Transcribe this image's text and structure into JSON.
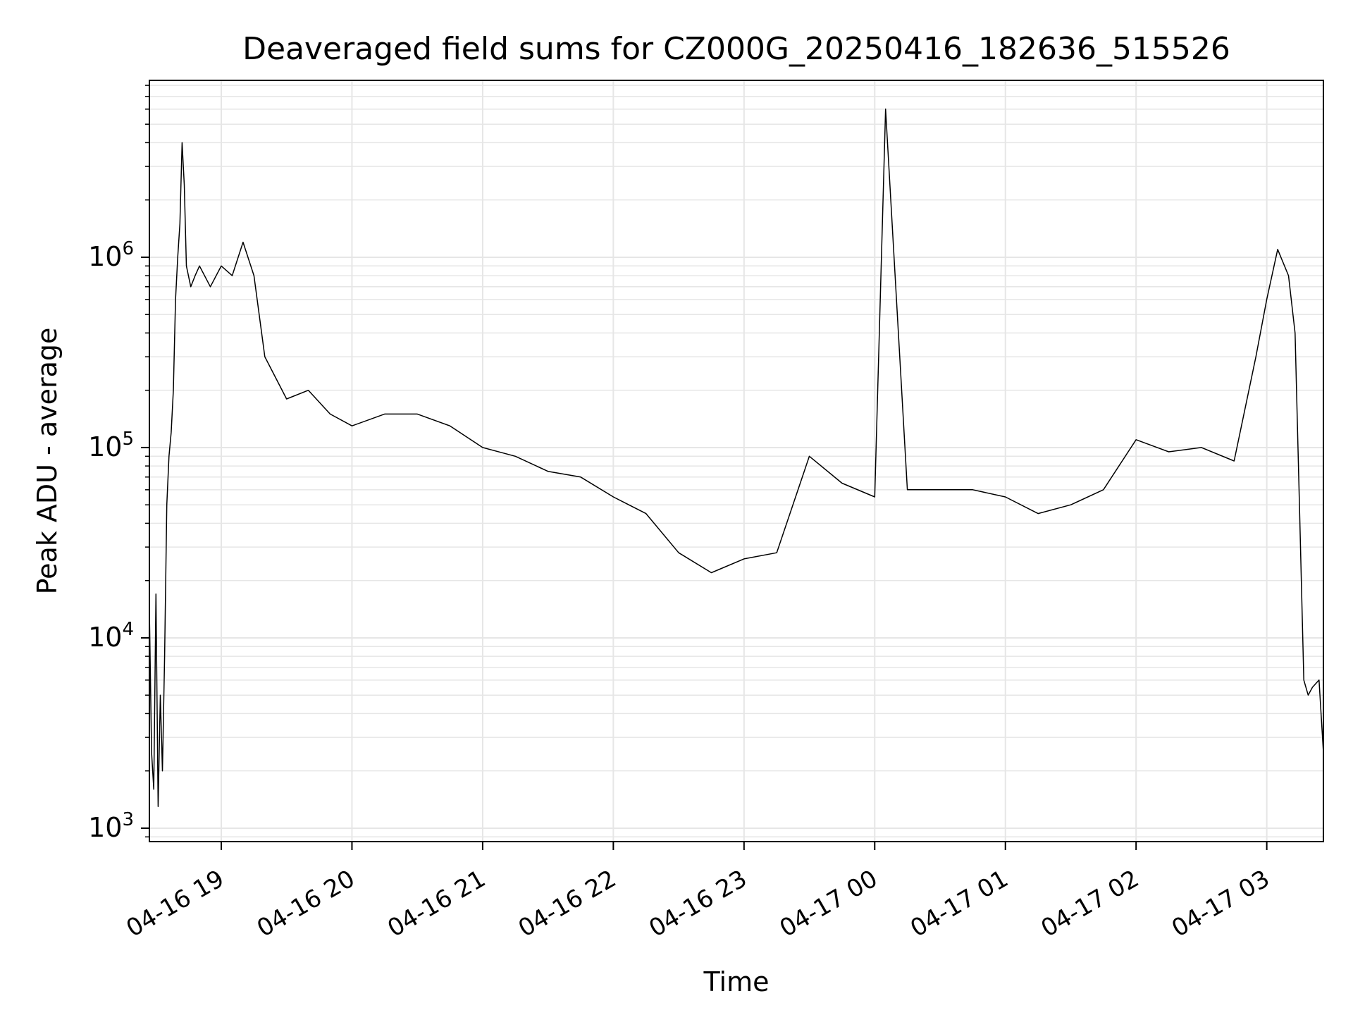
{
  "chart_data": {
    "type": "line",
    "title": "Deaveraged field sums for CZ000G_20250416_182636_515526",
    "xlabel": "Time",
    "ylabel": "Peak ADU - average",
    "xscale": "time",
    "yscale": "log",
    "xlim": [
      "2025-04-16 18:27",
      "2025-04-17 03:26"
    ],
    "ylim": [
      850,
      8500000
    ],
    "x_ticks": [
      {
        "value": "2025-04-16 19:00",
        "label": "04-16 19"
      },
      {
        "value": "2025-04-16 20:00",
        "label": "04-16 20"
      },
      {
        "value": "2025-04-16 21:00",
        "label": "04-16 21"
      },
      {
        "value": "2025-04-16 22:00",
        "label": "04-16 22"
      },
      {
        "value": "2025-04-16 23:00",
        "label": "04-16 23"
      },
      {
        "value": "2025-04-17 00:00",
        "label": "04-17 00"
      },
      {
        "value": "2025-04-17 01:00",
        "label": "04-17 01"
      },
      {
        "value": "2025-04-17 02:00",
        "label": "04-17 02"
      },
      {
        "value": "2025-04-17 03:00",
        "label": "04-17 03"
      }
    ],
    "y_ticks": [
      {
        "value": 1000,
        "base": "10",
        "exp": "3"
      },
      {
        "value": 10000,
        "base": "10",
        "exp": "4"
      },
      {
        "value": 100000,
        "base": "10",
        "exp": "5"
      },
      {
        "value": 1000000,
        "base": "10",
        "exp": "6"
      }
    ],
    "grid": true,
    "legend": "none",
    "line_color": "#000000",
    "grid_color": "#e6e6e6",
    "series": [
      {
        "x": [
          "2025-04-16 18:27",
          "2025-04-16 18:28",
          "2025-04-16 18:29",
          "2025-04-16 18:30",
          "2025-04-16 18:31",
          "2025-04-16 18:32",
          "2025-04-16 18:33",
          "2025-04-16 18:34",
          "2025-04-16 18:35",
          "2025-04-16 18:36",
          "2025-04-16 18:37",
          "2025-04-16 18:38",
          "2025-04-16 18:39",
          "2025-04-16 18:40",
          "2025-04-16 18:41",
          "2025-04-16 18:42",
          "2025-04-16 18:43",
          "2025-04-16 18:44",
          "2025-04-16 18:46",
          "2025-04-16 18:48",
          "2025-04-16 18:50",
          "2025-04-16 18:55",
          "2025-04-16 19:00",
          "2025-04-16 19:05",
          "2025-04-16 19:10",
          "2025-04-16 19:15",
          "2025-04-16 19:20",
          "2025-04-16 19:30",
          "2025-04-16 19:40",
          "2025-04-16 19:50",
          "2025-04-16 20:00",
          "2025-04-16 20:15",
          "2025-04-16 20:30",
          "2025-04-16 20:45",
          "2025-04-16 21:00",
          "2025-04-16 21:15",
          "2025-04-16 21:30",
          "2025-04-16 21:45",
          "2025-04-16 22:00",
          "2025-04-16 22:15",
          "2025-04-16 22:30",
          "2025-04-16 22:45",
          "2025-04-16 23:00",
          "2025-04-16 23:15",
          "2025-04-16 23:30",
          "2025-04-16 23:45",
          "2025-04-17 00:00",
          "2025-04-17 00:05",
          "2025-04-17 00:15",
          "2025-04-17 00:30",
          "2025-04-17 00:45",
          "2025-04-17 01:00",
          "2025-04-17 01:15",
          "2025-04-17 01:30",
          "2025-04-17 01:45",
          "2025-04-17 02:00",
          "2025-04-17 02:15",
          "2025-04-17 02:30",
          "2025-04-17 02:45",
          "2025-04-17 02:55",
          "2025-04-17 03:00",
          "2025-04-17 03:05",
          "2025-04-17 03:10",
          "2025-04-17 03:13",
          "2025-04-17 03:15",
          "2025-04-17 03:17",
          "2025-04-17 03:19",
          "2025-04-17 03:21",
          "2025-04-17 03:24",
          "2025-04-17 03:26"
        ],
        "y": [
          14000,
          2500,
          1600,
          17000,
          1300,
          5000,
          2000,
          8000,
          50000,
          90000,
          120000,
          200000,
          600000,
          1000000,
          1500000,
          4000000,
          2400000,
          900000,
          700000,
          800000,
          900000,
          700000,
          900000,
          800000,
          1200000,
          800000,
          300000,
          180000,
          200000,
          150000,
          130000,
          150000,
          150000,
          130000,
          100000,
          90000,
          75000,
          70000,
          55000,
          45000,
          28000,
          22000,
          26000,
          28000,
          90000,
          65000,
          55000,
          6000000,
          60000,
          60000,
          60000,
          55000,
          45000,
          50000,
          60000,
          110000,
          95000,
          100000,
          85000,
          300000,
          600000,
          1100000,
          800000,
          400000,
          50000,
          6000,
          5000,
          5500,
          6000,
          2500
        ]
      }
    ]
  }
}
